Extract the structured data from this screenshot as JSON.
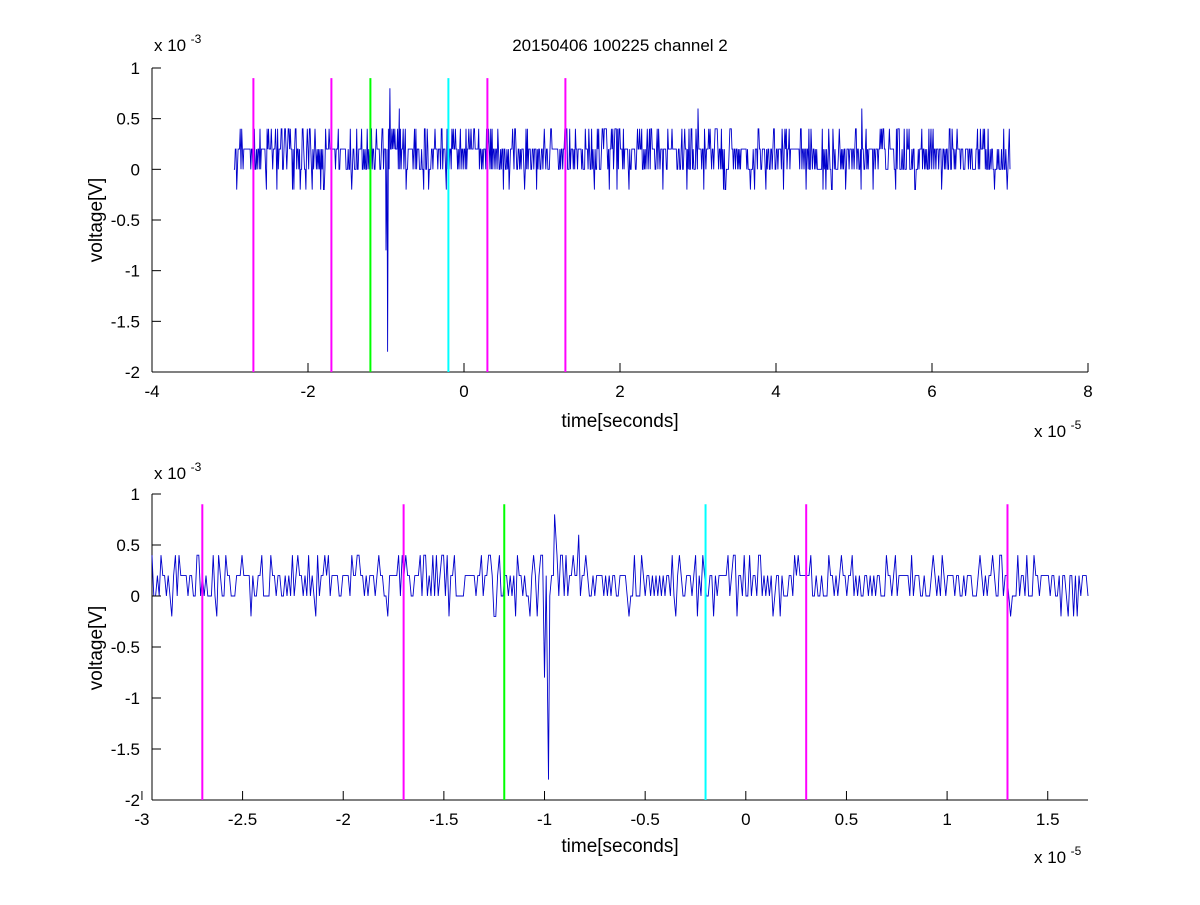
{
  "chart_data": [
    {
      "type": "line",
      "title": "20150406 100225 channel 2",
      "xlabel": "time[seconds]",
      "ylabel": "voltage[V]",
      "x_multiplier_label": "x 10",
      "x_multiplier_exp": "-5",
      "y_multiplier_label": "x 10",
      "y_multiplier_exp": "-3",
      "xlim": [
        -4,
        8
      ],
      "ylim": [
        -2,
        1
      ],
      "x_ticks": [
        -4,
        -2,
        0,
        2,
        4,
        6,
        8
      ],
      "x_tick_labels": [
        "-4",
        "-2",
        "0",
        "2",
        "4",
        "6",
        "8"
      ],
      "y_ticks": [
        -2,
        -1.5,
        -1,
        -0.5,
        0,
        0.5,
        1
      ],
      "y_tick_labels": [
        "-2",
        "-1.5",
        "-1",
        "-0.5",
        "0",
        "0.5",
        "1"
      ],
      "grid": false,
      "signal": {
        "color": "#0000cc",
        "x_start": -2.95,
        "x_end": 7.0,
        "baseline": 0.2,
        "noise_levels": [
          0,
          0.2,
          0.4,
          -0.2
        ],
        "spikes": [
          {
            "x": -0.98,
            "y": -1.8
          },
          {
            "x": -1.0,
            "y": -0.8
          },
          {
            "x": -0.95,
            "y": 0.8
          },
          {
            "x": -0.83,
            "y": 0.6
          },
          {
            "x": 3.0,
            "y": 0.6
          },
          {
            "x": 5.1,
            "y": 0.6
          }
        ]
      },
      "markers": [
        {
          "x": -2.7,
          "color": "#ff00ff"
        },
        {
          "x": -1.7,
          "color": "#ff00ff"
        },
        {
          "x": -1.2,
          "color": "#00ff00"
        },
        {
          "x": -0.2,
          "color": "#00ffff"
        },
        {
          "x": 0.3,
          "color": "#ff00ff"
        },
        {
          "x": 1.3,
          "color": "#ff00ff"
        }
      ],
      "marker_top": 0.9
    },
    {
      "type": "line",
      "title": "",
      "xlabel": "time[seconds]",
      "ylabel": "voltage[V]",
      "x_multiplier_label": "x 10",
      "x_multiplier_exp": "-5",
      "y_multiplier_label": "x 10",
      "y_multiplier_exp": "-3",
      "xlim": [
        -2.95,
        1.7
      ],
      "ylim": [
        -2,
        1
      ],
      "x_ticks": [
        -3,
        -2.5,
        -2,
        -1.5,
        -1,
        -0.5,
        0,
        0.5,
        1,
        1.5
      ],
      "x_tick_labels": [
        "-3",
        "-2.5",
        "-2",
        "-1.5",
        "-1",
        "-0.5",
        "0",
        "0.5",
        "1",
        "1.5"
      ],
      "y_ticks": [
        -2,
        -1.5,
        -1,
        -0.5,
        0,
        0.5,
        1
      ],
      "y_tick_labels": [
        "-2",
        "-1.5",
        "-1",
        "-0.5",
        "0",
        "0.5",
        "1"
      ],
      "grid": false,
      "signal": {
        "color": "#0000cc",
        "x_start": -2.95,
        "x_end": 1.7,
        "baseline": 0.2,
        "noise_levels": [
          0,
          0.2,
          0.4,
          -0.2
        ],
        "spikes": [
          {
            "x": -1.0,
            "y": -0.8
          },
          {
            "x": -0.98,
            "y": -1.8
          },
          {
            "x": -0.95,
            "y": 0.8
          },
          {
            "x": -0.83,
            "y": 0.6
          }
        ]
      },
      "markers": [
        {
          "x": -2.7,
          "color": "#ff00ff"
        },
        {
          "x": -1.7,
          "color": "#ff00ff"
        },
        {
          "x": -1.2,
          "color": "#00ff00"
        },
        {
          "x": -0.2,
          "color": "#00ffff"
        },
        {
          "x": 0.3,
          "color": "#ff00ff"
        },
        {
          "x": 1.3,
          "color": "#ff00ff"
        }
      ],
      "marker_top": 0.9
    }
  ]
}
